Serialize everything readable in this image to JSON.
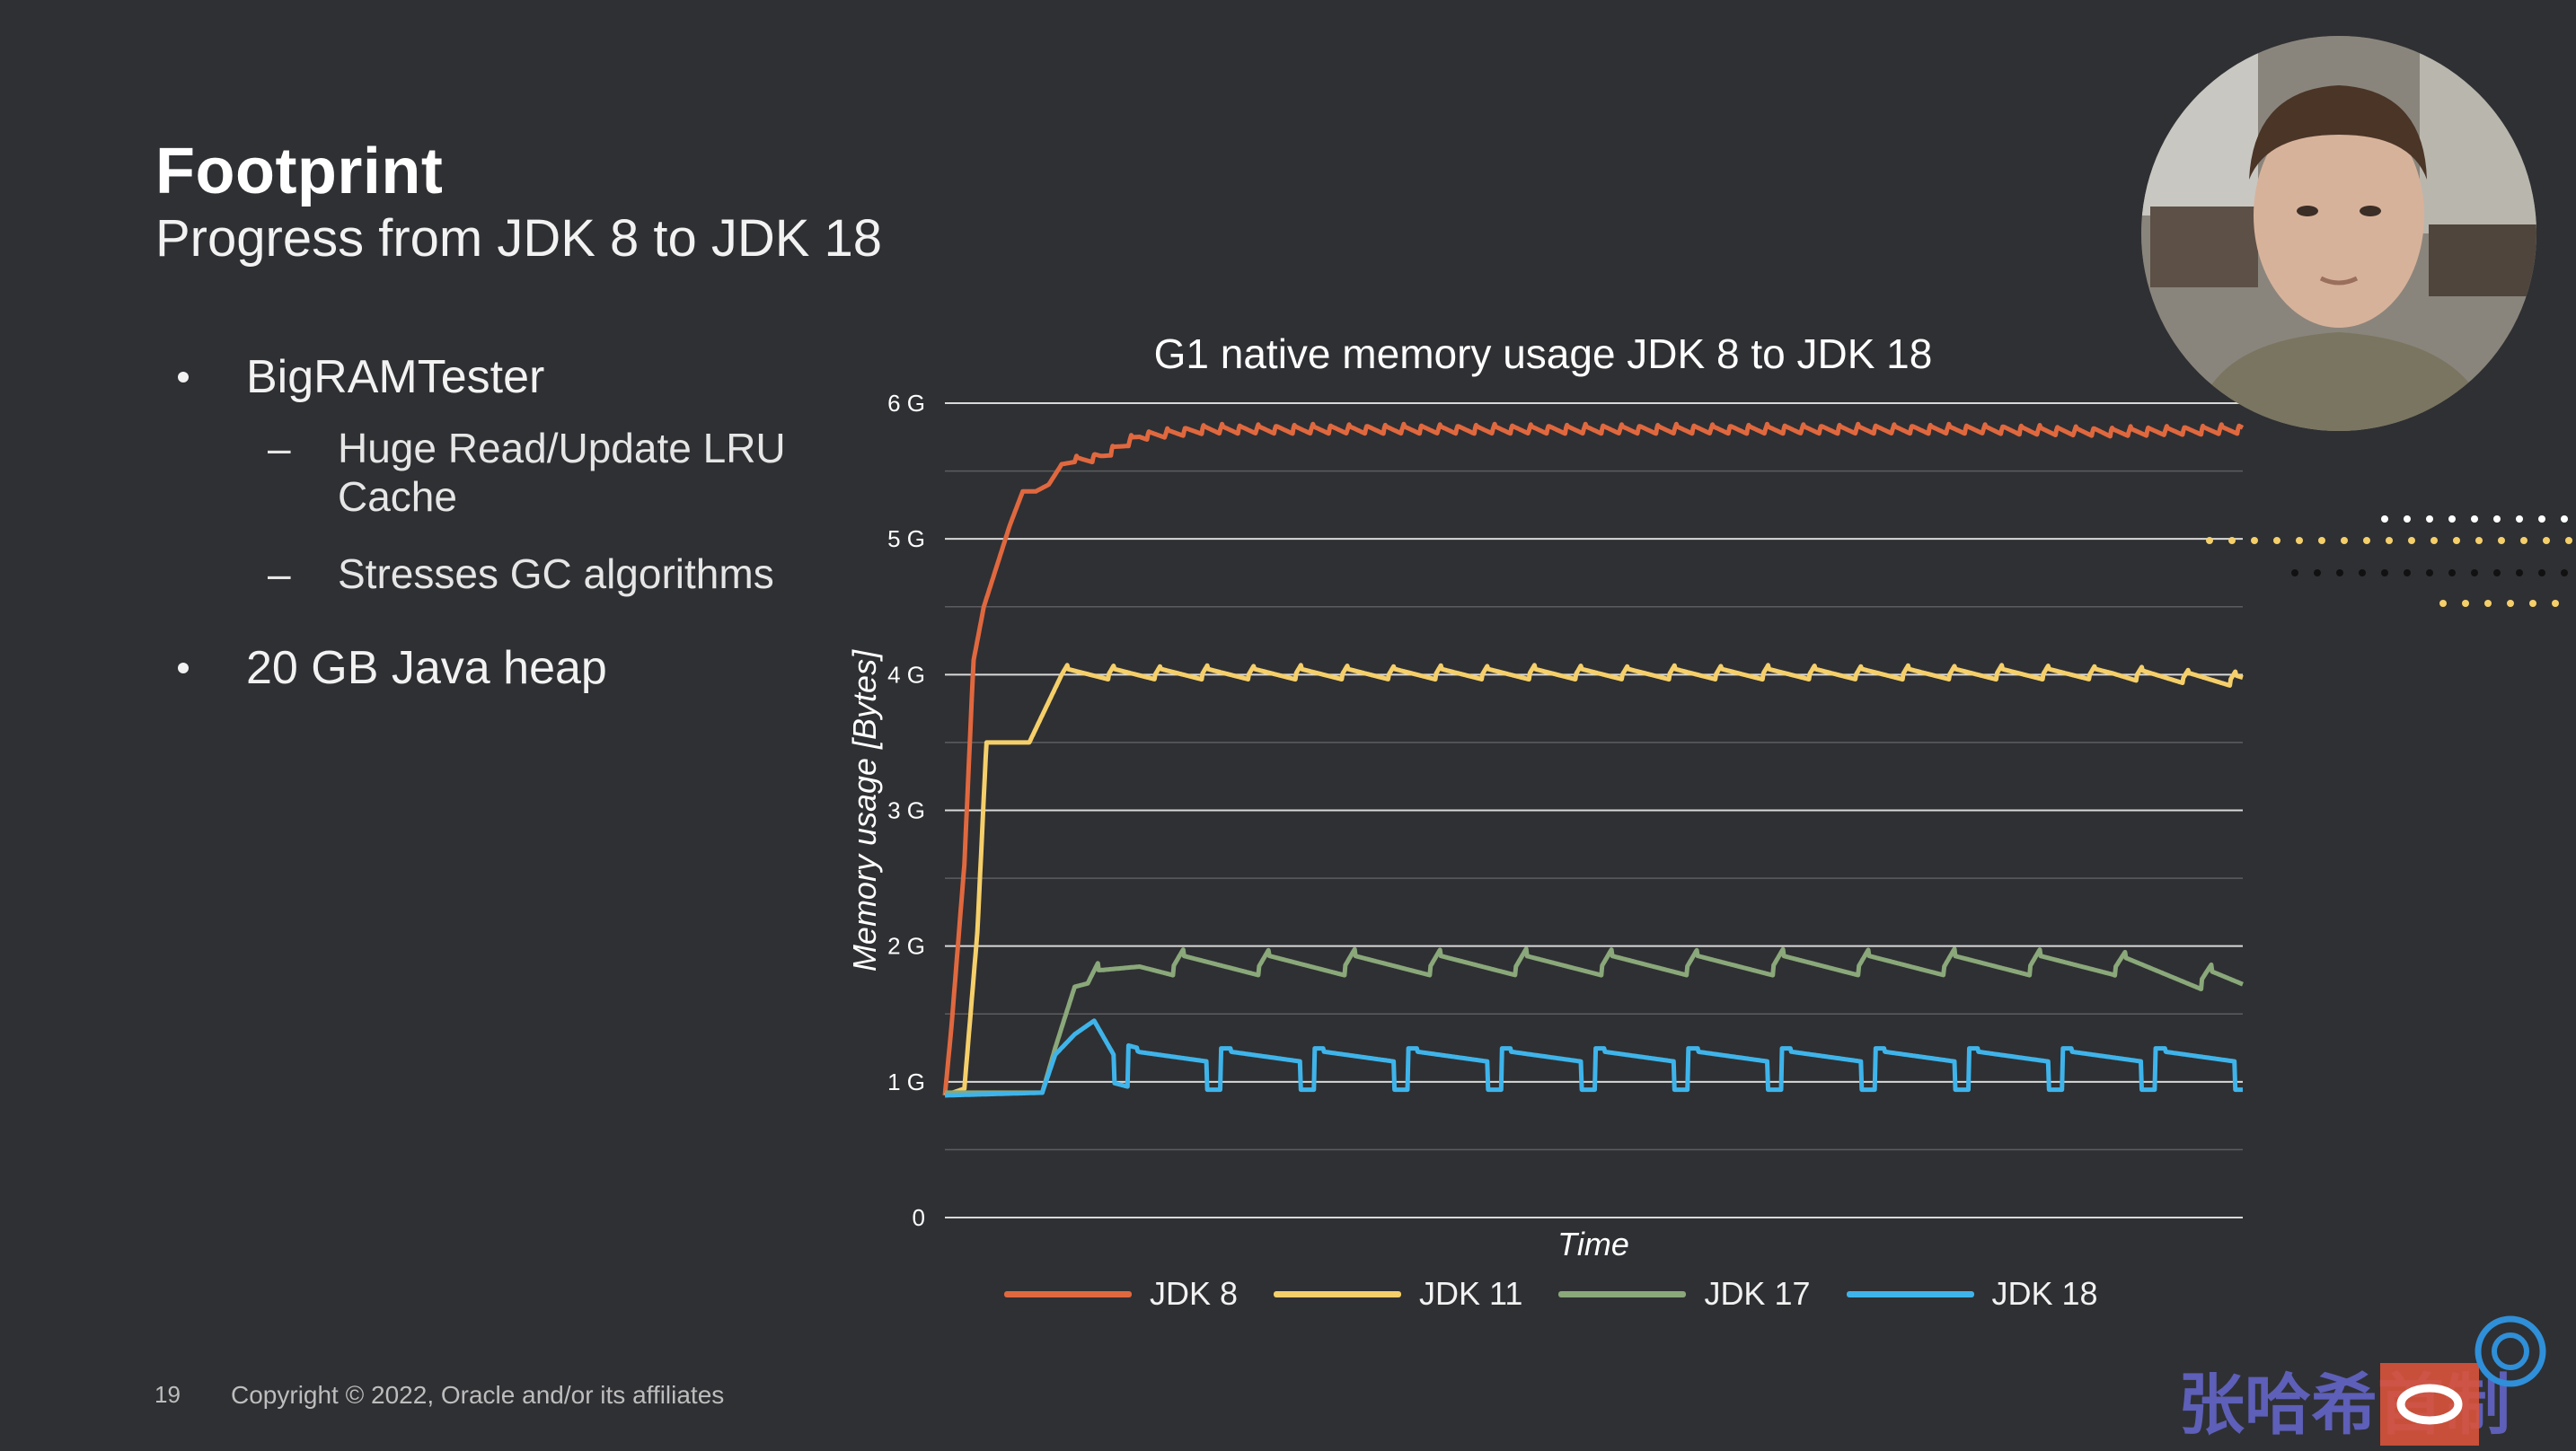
{
  "slide": {
    "title": "Footprint",
    "subtitle": "Progress from JDK 8 to JDK 18",
    "bullets": [
      {
        "text": "BigRAMTester",
        "subs": [
          "Huge Read/Update LRU Cache",
          "Stresses GC algorithms"
        ]
      },
      {
        "text": "20 GB Java heap",
        "subs": []
      }
    ],
    "page_number": "19",
    "copyright": "Copyright © 2022, Oracle and/or its affiliates",
    "watermark_text": "张哈希首制"
  },
  "chart_data": {
    "type": "line",
    "title": "G1 native memory usage JDK 8 to JDK 18",
    "xlabel": "Time",
    "ylabel": "Memory usage [Bytes]",
    "ylim": [
      0,
      6
    ],
    "yticks": [
      {
        "value": 0,
        "label": "0"
      },
      {
        "value": 1,
        "label": "1 G"
      },
      {
        "value": 2,
        "label": "2 G"
      },
      {
        "value": 3,
        "label": "3 G"
      },
      {
        "value": 4,
        "label": "4 G"
      },
      {
        "value": 5,
        "label": "5 G"
      },
      {
        "value": 6,
        "label": "6 G"
      }
    ],
    "grid": true,
    "legend_position": "bottom",
    "series": [
      {
        "name": "JDK 8",
        "color": "#e0683f",
        "x": [
          0,
          0.5,
          1.5,
          2.2,
          3.0,
          4.0,
          5.0,
          6.0,
          7.0,
          8.0,
          9.0,
          12,
          15,
          20,
          30,
          40,
          50,
          60,
          70,
          80,
          90,
          100
        ],
        "y": [
          0.9,
          1.4,
          2.6,
          4.1,
          4.5,
          4.8,
          5.1,
          5.35,
          5.35,
          5.4,
          5.55,
          5.6,
          5.75,
          5.8,
          5.8,
          5.8,
          5.8,
          5.8,
          5.8,
          5.8,
          5.78,
          5.8
        ]
      },
      {
        "name": "JDK 11",
        "color": "#f5cf6a",
        "x": [
          0,
          1.5,
          2.5,
          3.2,
          3.8,
          6.5,
          7.5,
          9.0,
          12,
          20,
          30,
          40,
          50,
          60,
          70,
          80,
          90,
          100
        ],
        "y": [
          0.9,
          0.95,
          2.1,
          3.5,
          3.5,
          3.5,
          3.7,
          4.0,
          4.0,
          4.0,
          4.0,
          4.0,
          4.0,
          4.0,
          4.0,
          4.0,
          4.0,
          3.95
        ]
      },
      {
        "name": "JDK 17",
        "color": "#8aa87a",
        "x": [
          0,
          7.5,
          8.5,
          10,
          12,
          15,
          20,
          30,
          40,
          50,
          60,
          70,
          80,
          90,
          100
        ],
        "y": [
          0.92,
          0.92,
          1.25,
          1.7,
          1.75,
          1.85,
          1.85,
          1.85,
          1.85,
          1.85,
          1.85,
          1.85,
          1.85,
          1.85,
          1.7
        ]
      },
      {
        "name": "JDK 18",
        "color": "#3fb4ea",
        "x": [
          0,
          7.5,
          8.5,
          10,
          11.5,
          13,
          15,
          20,
          30,
          40,
          50,
          60,
          70,
          80,
          90,
          100
        ],
        "y": [
          0.9,
          0.92,
          1.2,
          1.35,
          1.45,
          1.2,
          1.15,
          1.15,
          1.15,
          1.15,
          1.15,
          1.15,
          1.15,
          1.15,
          1.15,
          1.15
        ]
      }
    ]
  }
}
